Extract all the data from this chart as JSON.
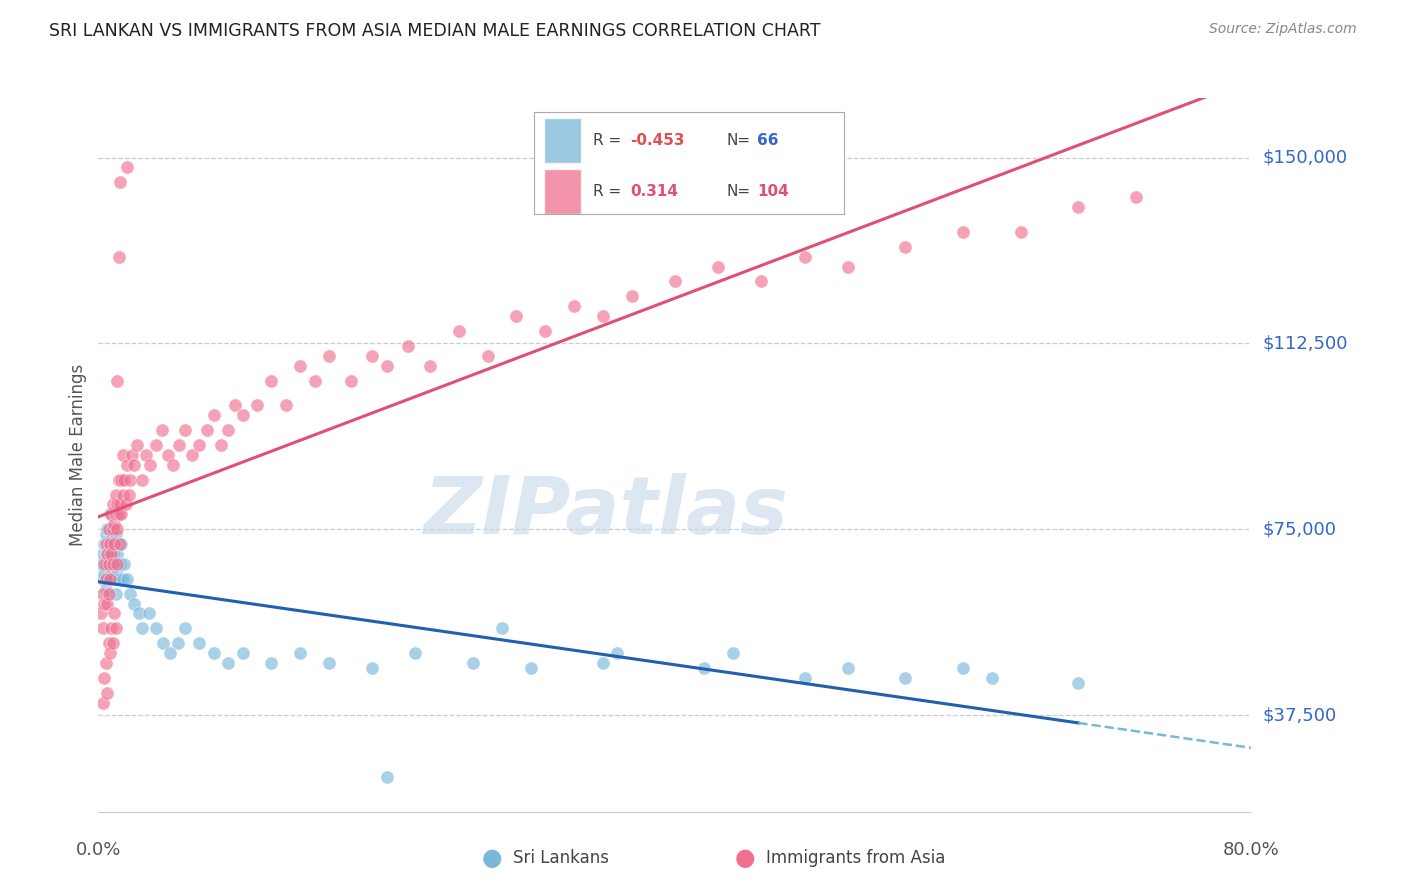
{
  "title": "SRI LANKAN VS IMMIGRANTS FROM ASIA MEDIAN MALE EARNINGS CORRELATION CHART",
  "source": "Source: ZipAtlas.com",
  "ylabel": "Median Male Earnings",
  "ytick_labels": [
    "$37,500",
    "$75,000",
    "$112,500",
    "$150,000"
  ],
  "ytick_values": [
    37500,
    75000,
    112500,
    150000
  ],
  "ymin": 18000,
  "ymax": 162000,
  "xmin": 0.0,
  "xmax": 0.8,
  "blue_color": "#7ab8d9",
  "pink_color": "#f07090",
  "line_blue": "#2060b0",
  "line_pink": "#e05070",
  "dashed_blue": "#7ab8d9",
  "watermark_color": "#c5d8ea",
  "background_color": "#ffffff",
  "grid_color": "#cccccc",
  "sri_lankans_x": [
    0.002,
    0.003,
    0.003,
    0.004,
    0.004,
    0.005,
    0.005,
    0.005,
    0.006,
    0.006,
    0.006,
    0.007,
    0.007,
    0.008,
    0.008,
    0.008,
    0.009,
    0.009,
    0.01,
    0.01,
    0.01,
    0.011,
    0.011,
    0.012,
    0.012,
    0.013,
    0.013,
    0.014,
    0.015,
    0.016,
    0.017,
    0.018,
    0.02,
    0.022,
    0.025,
    0.028,
    0.03,
    0.035,
    0.04,
    0.045,
    0.05,
    0.055,
    0.06,
    0.07,
    0.08,
    0.09,
    0.1,
    0.12,
    0.14,
    0.16,
    0.19,
    0.22,
    0.26,
    0.3,
    0.35,
    0.42,
    0.49,
    0.56,
    0.62,
    0.68,
    0.2,
    0.28,
    0.36,
    0.44,
    0.52,
    0.6
  ],
  "sri_lankans_y": [
    68000,
    65000,
    70000,
    72000,
    66000,
    68000,
    74000,
    63000,
    70000,
    75000,
    65000,
    72000,
    68000,
    78000,
    65000,
    70000,
    73000,
    67000,
    75000,
    70000,
    65000,
    72000,
    68000,
    74000,
    62000,
    70000,
    67000,
    65000,
    68000,
    72000,
    65000,
    68000,
    65000,
    62000,
    60000,
    58000,
    55000,
    58000,
    55000,
    52000,
    50000,
    52000,
    55000,
    52000,
    50000,
    48000,
    50000,
    48000,
    50000,
    48000,
    47000,
    50000,
    48000,
    47000,
    48000,
    47000,
    45000,
    45000,
    45000,
    44000,
    25000,
    55000,
    50000,
    50000,
    47000,
    47000
  ],
  "immigrants_x": [
    0.002,
    0.003,
    0.003,
    0.004,
    0.004,
    0.005,
    0.005,
    0.006,
    0.006,
    0.007,
    0.007,
    0.007,
    0.008,
    0.008,
    0.009,
    0.009,
    0.01,
    0.01,
    0.01,
    0.011,
    0.011,
    0.012,
    0.012,
    0.013,
    0.013,
    0.013,
    0.014,
    0.014,
    0.015,
    0.015,
    0.016,
    0.016,
    0.017,
    0.017,
    0.018,
    0.019,
    0.02,
    0.021,
    0.022,
    0.023,
    0.025,
    0.027,
    0.03,
    0.033,
    0.036,
    0.04,
    0.044,
    0.048,
    0.052,
    0.056,
    0.06,
    0.065,
    0.07,
    0.075,
    0.08,
    0.085,
    0.09,
    0.095,
    0.1,
    0.11,
    0.12,
    0.13,
    0.14,
    0.15,
    0.16,
    0.175,
    0.19,
    0.2,
    0.215,
    0.23,
    0.25,
    0.27,
    0.29,
    0.31,
    0.33,
    0.35,
    0.37,
    0.4,
    0.43,
    0.46,
    0.49,
    0.52,
    0.56,
    0.6,
    0.64,
    0.68,
    0.72,
    0.003,
    0.004,
    0.005,
    0.006,
    0.007,
    0.008,
    0.009,
    0.01,
    0.011,
    0.012,
    0.013,
    0.014,
    0.015,
    0.02
  ],
  "immigrants_y": [
    58000,
    62000,
    55000,
    60000,
    68000,
    65000,
    72000,
    70000,
    60000,
    75000,
    68000,
    62000,
    72000,
    65000,
    70000,
    78000,
    75000,
    68000,
    80000,
    72000,
    76000,
    78000,
    82000,
    75000,
    80000,
    68000,
    78000,
    85000,
    80000,
    72000,
    85000,
    78000,
    82000,
    90000,
    85000,
    80000,
    88000,
    82000,
    85000,
    90000,
    88000,
    92000,
    85000,
    90000,
    88000,
    92000,
    95000,
    90000,
    88000,
    92000,
    95000,
    90000,
    92000,
    95000,
    98000,
    92000,
    95000,
    100000,
    98000,
    100000,
    105000,
    100000,
    108000,
    105000,
    110000,
    105000,
    110000,
    108000,
    112000,
    108000,
    115000,
    110000,
    118000,
    115000,
    120000,
    118000,
    122000,
    125000,
    128000,
    125000,
    130000,
    128000,
    132000,
    135000,
    135000,
    140000,
    142000,
    40000,
    45000,
    48000,
    42000,
    52000,
    50000,
    55000,
    52000,
    58000,
    55000,
    105000,
    130000,
    145000,
    148000
  ]
}
